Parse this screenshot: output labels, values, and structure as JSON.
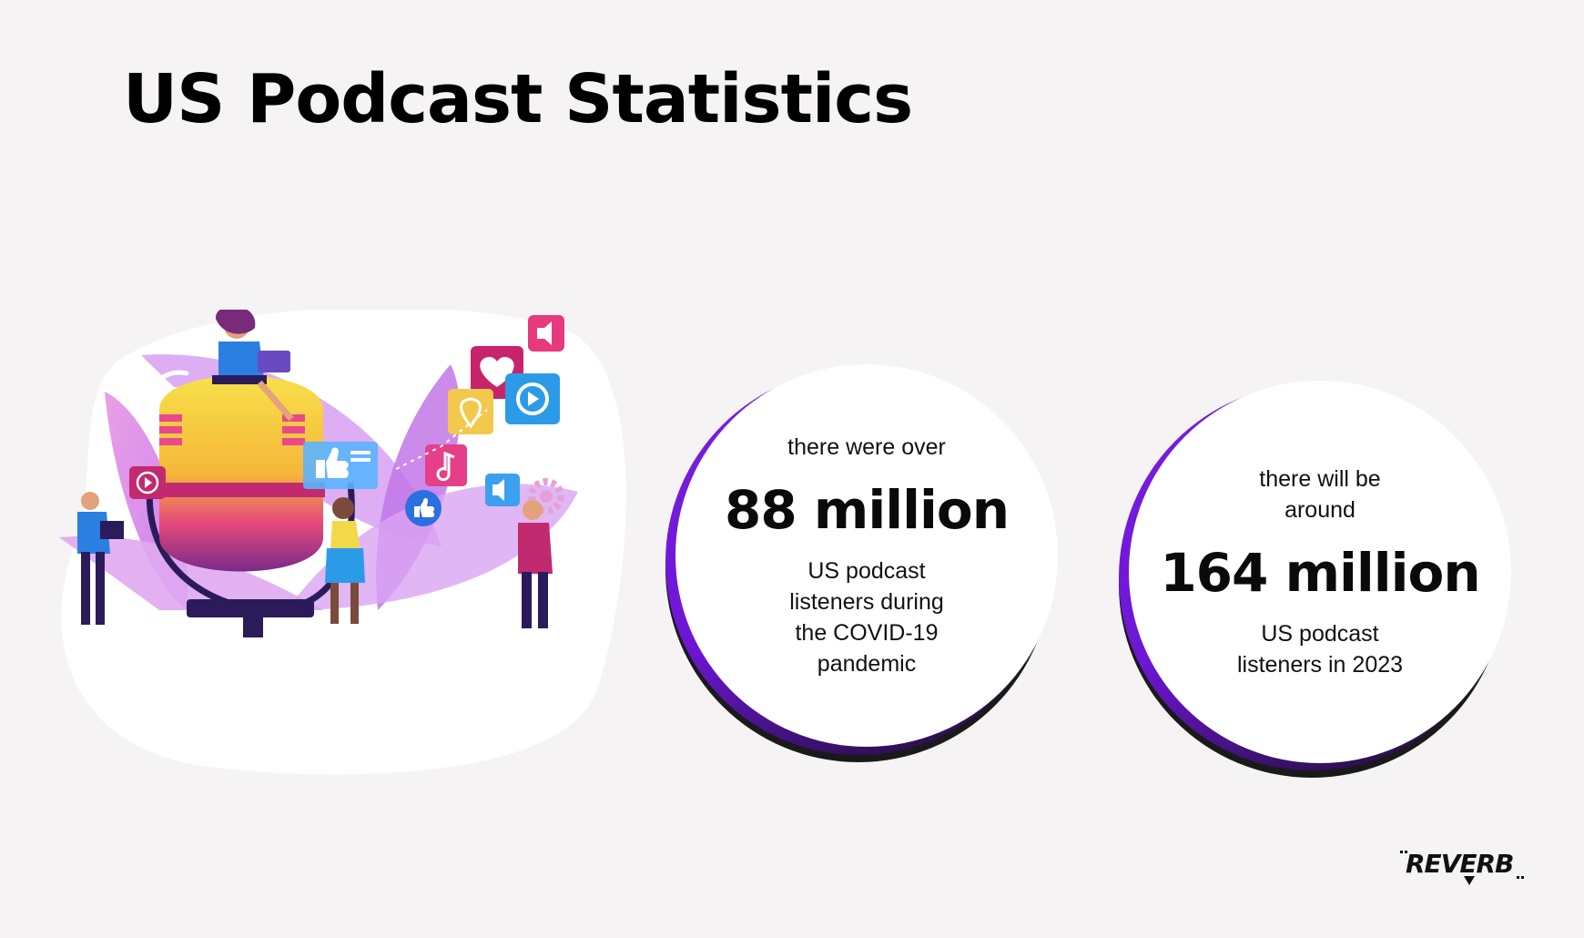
{
  "title": "US Podcast Statistics",
  "stats": [
    {
      "pre": "there were over",
      "value": "88 million",
      "post": "US podcast listeners during the COVID-19 pandemic"
    },
    {
      "pre": "there will be around",
      "value": "164 million",
      "post": "US podcast listeners in 2023"
    }
  ],
  "brand": {
    "logo_text": "REVERB"
  },
  "colors": {
    "accent": "#7b1fe0",
    "background": "#f5f3f4",
    "text": "#000000"
  },
  "illustration": {
    "icons": [
      "microphone-icon",
      "heart-icon",
      "play-icon",
      "speaker-icon",
      "location-pin-icon",
      "music-note-icon",
      "thumbs-up-icon",
      "wifi-icon",
      "gear-icon"
    ]
  }
}
